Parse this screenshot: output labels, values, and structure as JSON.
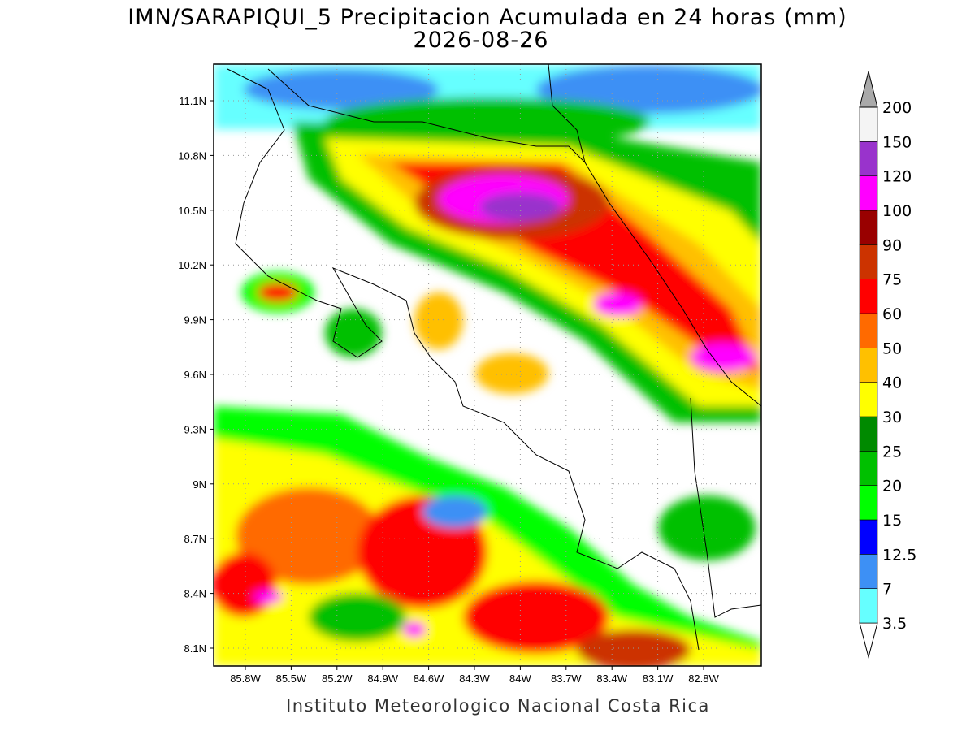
{
  "title": "IMN/SARAPIQUI_5 Precipitacion Acumulada en 24 horas (mm)",
  "date": "2026-08-26",
  "lat_ticks": [
    "11.1N",
    "10.8N",
    "10.5N",
    "10.2N",
    "9.9N",
    "9.6N",
    "9.3N",
    "9N",
    "8.7N",
    "8.4N",
    "8.1N"
  ],
  "lon_ticks": [
    "85.8W",
    "85.5W",
    "85.2W",
    "84.9W",
    "84.6W",
    "84.3W",
    "84W",
    "83.7W",
    "83.4W",
    "83.1W",
    "82.8W"
  ],
  "colorbar": {
    "levels": [
      3.5,
      7,
      12.5,
      15,
      20,
      25,
      30,
      40,
      50,
      60,
      75,
      90,
      100,
      120,
      150,
      200
    ],
    "colors": [
      "#ffffff",
      "#66ffff",
      "#3d90f5",
      "#0000ff",
      "#00ff00",
      "#00c000",
      "#008a00",
      "#ffff00",
      "#ffc000",
      "#ff6a00",
      "#ff0000",
      "#cc3300",
      "#990000",
      "#ff00ff",
      "#9933cc",
      "#f4f4f4",
      "#aaaaaa"
    ]
  },
  "footer": "Instituto Meteorologico Nacional Costa Rica"
}
